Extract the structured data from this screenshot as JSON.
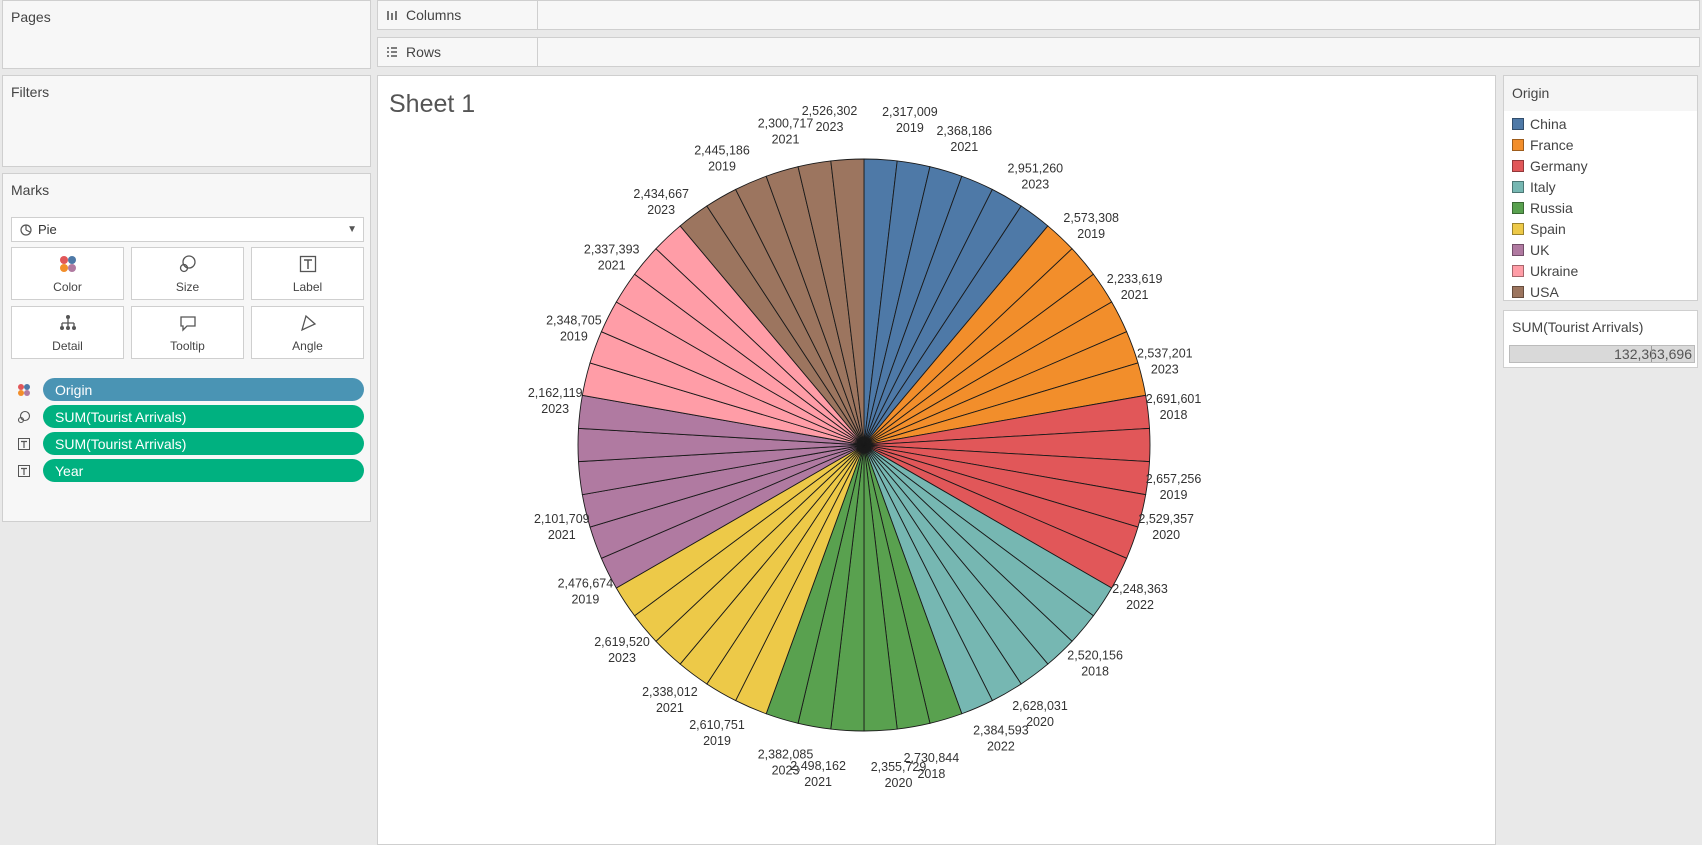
{
  "panels": {
    "pages": "Pages",
    "filters": "Filters",
    "marks": "Marks"
  },
  "marks": {
    "type": "Pie",
    "buttons": [
      "Color",
      "Size",
      "Label",
      "Detail",
      "Tooltip",
      "Angle"
    ],
    "pills": [
      {
        "icon": "color-icon",
        "label": "Origin",
        "kind": "dimension"
      },
      {
        "icon": "size-icon",
        "label": "SUM(Tourist Arrivals)",
        "kind": "measure"
      },
      {
        "icon": "label-icon",
        "label": "SUM(Tourist Arrivals)",
        "kind": "measure"
      },
      {
        "icon": "label-icon",
        "label": "Year",
        "kind": "measure"
      }
    ]
  },
  "shelves": {
    "columns": "Columns",
    "rows": "Rows"
  },
  "sheet": {
    "title": "Sheet 1"
  },
  "legend": {
    "title": "Origin",
    "items": [
      {
        "name": "China",
        "color": "#4e79a7"
      },
      {
        "name": "France",
        "color": "#f28e2b"
      },
      {
        "name": "Germany",
        "color": "#e15759"
      },
      {
        "name": "Italy",
        "color": "#76b7b2"
      },
      {
        "name": "Russia",
        "color": "#59a14f"
      },
      {
        "name": "Spain",
        "color": "#edc948"
      },
      {
        "name": "UK",
        "color": "#b07aa1"
      },
      {
        "name": "Ukraine",
        "color": "#ff9da7"
      },
      {
        "name": "USA",
        "color": "#9c755f"
      }
    ]
  },
  "size_legend": {
    "title": "SUM(Tourist Arrivals)",
    "value": "132,363,696"
  },
  "chart_data": {
    "type": "pie",
    "title": "Sheet 1",
    "slice_count": 54,
    "start": "12 o'clock, clockwise",
    "groups": [
      {
        "name": "China",
        "slices": 6
      },
      {
        "name": "France",
        "slices": 6
      },
      {
        "name": "Germany",
        "slices": 6
      },
      {
        "name": "Italy",
        "slices": 6
      },
      {
        "name": "Russia",
        "slices": 6
      },
      {
        "name": "Spain",
        "slices": 6
      },
      {
        "name": "UK",
        "slices": 6
      },
      {
        "name": "Ukraine",
        "slices": 6
      },
      {
        "name": "USA",
        "slices": 6
      }
    ],
    "labels": [
      {
        "value": "2,317,009",
        "year": "2019",
        "angle_deg": 8
      },
      {
        "value": "2,368,186",
        "year": "2021",
        "angle_deg": 21
      },
      {
        "value": "2,951,260",
        "year": "2023",
        "angle_deg": 35
      },
      {
        "value": "2,573,308",
        "year": "2019",
        "angle_deg": 48
      },
      {
        "value": "2,233,619",
        "year": "2021",
        "angle_deg": 61
      },
      {
        "value": "2,537,201",
        "year": "2023",
        "angle_deg": 75
      },
      {
        "value": "2,691,601",
        "year": "2018",
        "angle_deg": 83
      },
      {
        "value": "2,657,256",
        "year": "2019",
        "angle_deg": 97
      },
      {
        "value": "2,529,357",
        "year": "2020",
        "angle_deg": 104
      },
      {
        "value": "2,248,363",
        "year": "2022",
        "angle_deg": 117
      },
      {
        "value": "2,520,156",
        "year": "2018",
        "angle_deg": 131
      },
      {
        "value": "2,628,031",
        "year": "2020",
        "angle_deg": 144
      },
      {
        "value": "2,384,593",
        "year": "2022",
        "angle_deg": 152
      },
      {
        "value": "2,730,844",
        "year": "2018",
        "angle_deg": 165
      },
      {
        "value": "2,355,729",
        "year": "2020",
        "angle_deg": 174
      },
      {
        "value": "2,498,162",
        "year": "2021",
        "angle_deg": 188
      },
      {
        "value": "2,382,085",
        "year": "2023",
        "angle_deg": 197
      },
      {
        "value": "2,610,751",
        "year": "2019",
        "angle_deg": 210
      },
      {
        "value": "2,338,012",
        "year": "2021",
        "angle_deg": 220
      },
      {
        "value": "2,619,520",
        "year": "2023",
        "angle_deg": 232
      },
      {
        "value": "2,476,674",
        "year": "2019",
        "angle_deg": 244
      },
      {
        "value": "2,101,709",
        "year": "2021",
        "angle_deg": 256
      },
      {
        "value": "2,162,119",
        "year": "2023",
        "angle_deg": 278
      },
      {
        "value": "2,348,705",
        "year": "2019",
        "angle_deg": 291
      },
      {
        "value": "2,337,393",
        "year": "2021",
        "angle_deg": 305
      },
      {
        "value": "2,434,667",
        "year": "2023",
        "angle_deg": 318
      },
      {
        "value": "2,445,186",
        "year": "2019",
        "angle_deg": 331
      },
      {
        "value": "2,300,717",
        "year": "2021",
        "angle_deg": 343
      },
      {
        "value": "2,526,302",
        "year": "2023",
        "angle_deg": 354
      }
    ]
  }
}
